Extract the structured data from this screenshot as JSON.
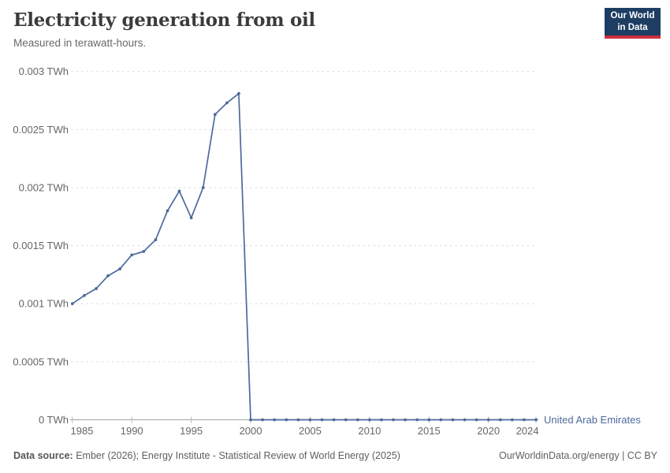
{
  "header": {
    "title": "Electricity generation from oil",
    "subtitle": "Measured in terawatt-hours."
  },
  "logo": {
    "line1": "Our World",
    "line2": "in Data"
  },
  "chart_data": {
    "type": "line",
    "title": "Electricity generation from oil",
    "unit": "TWh",
    "x_range": [
      1985,
      2024
    ],
    "ylim": [
      0,
      0.003
    ],
    "grid": true,
    "legend_position": "end-of-line",
    "x_ticks": [
      1985,
      1990,
      1995,
      2000,
      2005,
      2010,
      2015,
      2020,
      2024
    ],
    "y_ticks": [
      0,
      0.0005,
      0.001,
      0.0015,
      0.002,
      0.0025,
      0.003
    ],
    "y_tick_labels": [
      "0 TWh",
      "0.0005 TWh",
      "0.001 TWh",
      "0.0015 TWh",
      "0.002 TWh",
      "0.0025 TWh",
      "0.003 TWh"
    ],
    "series": [
      {
        "name": "United Arab Emirates",
        "color": "#4C6A9C",
        "x": [
          1985,
          1986,
          1987,
          1988,
          1989,
          1990,
          1991,
          1992,
          1993,
          1994,
          1995,
          1996,
          1997,
          1998,
          1999,
          2000,
          2001,
          2002,
          2003,
          2004,
          2005,
          2006,
          2007,
          2008,
          2009,
          2010,
          2011,
          2012,
          2013,
          2014,
          2015,
          2016,
          2017,
          2018,
          2019,
          2020,
          2021,
          2022,
          2023,
          2024
        ],
        "values": [
          0.001,
          0.00107,
          0.00113,
          0.00124,
          0.0013,
          0.00142,
          0.00145,
          0.00155,
          0.0018,
          0.00197,
          0.00174,
          0.002,
          0.00263,
          0.00273,
          0.00281,
          0,
          0,
          0,
          0,
          0,
          0,
          0,
          0,
          0,
          0,
          0,
          0,
          0,
          0,
          0,
          0,
          0,
          0,
          0,
          0,
          0,
          0,
          0,
          0,
          0
        ]
      }
    ]
  },
  "footer": {
    "source_label": "Data source:",
    "source_text": " Ember (2026); Energy Institute - Statistical Review of World Energy (2025)",
    "credit": "OurWorldinData.org/energy | CC BY"
  },
  "colors": {
    "line": "#4C6A9C",
    "entity_label": "#4C6A9C",
    "grid": "#dcdcdc",
    "axis": "#a3a3a3",
    "tick": "#b8b8b8",
    "tick_label": "#666666",
    "title": "#3b3b3b",
    "subtitle": "#68686c",
    "logo_bg": "#1d3d63",
    "logo_accent": "#cc2e3e",
    "footer_text": "#5f5f5f"
  }
}
